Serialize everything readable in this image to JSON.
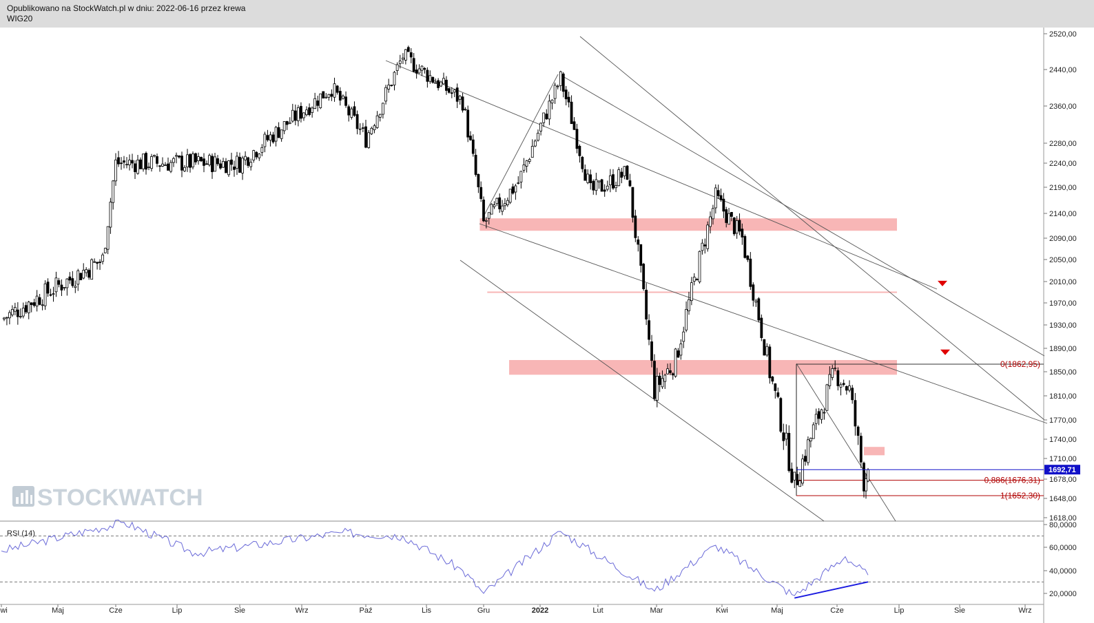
{
  "header": {
    "published": "Opublikowano na StockWatch.pl w dniu: 2022-06-16 przez krewa",
    "symbol": "WIG20"
  },
  "watermark": "STOCKWATCH",
  "colors": {
    "zone": "#f8b6b6",
    "channel": "#555555",
    "price_line": "#1010c8",
    "fib_line": "#b00000",
    "rsi_line": "#6a6ad8",
    "divergence": "#1a1ae0",
    "marker": "#e00000"
  },
  "chart_data": [
    {
      "type": "candlestick",
      "symbol": "WIG20",
      "y_ticks": [
        "2520,00",
        "2440,00",
        "2360,00",
        "2280,00",
        "2240,00",
        "2190,00",
        "2140,00",
        "2090,00",
        "2050,00",
        "2010,00",
        "1970,00",
        "1930,00",
        "1890,00",
        "1850,00",
        "1810,00",
        "1770,00",
        "1740,00",
        "1710,00",
        "1678,00",
        "1648,00",
        "1618,00"
      ],
      "x_ticks": [
        "Kwi",
        "Maj",
        "Cze",
        "Lip",
        "Sie",
        "Wrz",
        "Paź",
        "Lis",
        "Gru",
        "2022",
        "Lut",
        "Mar",
        "Kwi",
        "Maj",
        "Cze",
        "Lip",
        "Sie",
        "Wrz"
      ],
      "last_price": {
        "label": "1692,71",
        "value": 1692.71
      },
      "key_points": [
        {
          "date": "2021-04-01",
          "close": 1940
        },
        {
          "date": "2021-05-25",
          "close": 2050
        },
        {
          "date": "2021-06-01",
          "close": 2240
        },
        {
          "date": "2021-08-01",
          "close": 2240
        },
        {
          "date": "2021-09-15",
          "close": 2400
        },
        {
          "date": "2021-10-01",
          "close": 2290
        },
        {
          "date": "2021-10-20",
          "close": 2470
        },
        {
          "date": "2021-11-20",
          "close": 2370
        },
        {
          "date": "2021-12-01",
          "close": 2120
        },
        {
          "date": "2021-12-20",
          "close": 2200
        },
        {
          "date": "2022-01-12",
          "close": 2420
        },
        {
          "date": "2022-01-28",
          "close": 2180
        },
        {
          "date": "2022-02-15",
          "close": 2220
        },
        {
          "date": "2022-02-28",
          "close": 1820
        },
        {
          "date": "2022-03-10",
          "close": 1870
        },
        {
          "date": "2022-03-29",
          "close": 2170
        },
        {
          "date": "2022-04-12",
          "close": 2090
        },
        {
          "date": "2022-04-27",
          "close": 1850
        },
        {
          "date": "2022-05-10",
          "close": 1670
        },
        {
          "date": "2022-05-31",
          "close": 1850
        },
        {
          "date": "2022-06-07",
          "close": 1820
        },
        {
          "date": "2022-06-14",
          "close": 1676
        },
        {
          "date": "2022-06-16",
          "close": 1692.71
        }
      ],
      "fibonacci": [
        {
          "label": "0(1862,95)",
          "value": 1862.95
        },
        {
          "label": "0,886(1676,31)",
          "value": 1676.31
        },
        {
          "label": "1(1652,30)",
          "value": 1652.3
        }
      ],
      "resistance_zones": [
        {
          "from_date": "2021-11-29",
          "to_date": "2022-06-30",
          "low": 2105,
          "high": 2130
        },
        {
          "from_date": "2021-12-15",
          "to_date": "2022-06-30",
          "low": 1845,
          "high": 1870
        },
        {
          "from_date": "2022-06-14",
          "to_date": "2022-06-24",
          "low": 1715,
          "high": 1728
        }
      ],
      "support_line": {
        "from_date": "2021-12-03",
        "to_date": "2022-06-30",
        "value": 1990
      }
    },
    {
      "type": "line",
      "title": "RSI (14)",
      "y_ticks": [
        "80,0000",
        "60,0000",
        "40,0000",
        "20,0000"
      ],
      "ylim": [
        15,
        85
      ],
      "levels": [
        70,
        30
      ],
      "key_points": [
        {
          "date": "2021-04-01",
          "value": 57
        },
        {
          "date": "2021-06-05",
          "value": 82
        },
        {
          "date": "2021-07-10",
          "value": 55
        },
        {
          "date": "2021-09-20",
          "value": 73
        },
        {
          "date": "2021-10-20",
          "value": 70
        },
        {
          "date": "2021-11-20",
          "value": 40
        },
        {
          "date": "2021-12-01",
          "value": 20
        },
        {
          "date": "2022-01-12",
          "value": 74
        },
        {
          "date": "2022-02-28",
          "value": 22
        },
        {
          "date": "2022-03-29",
          "value": 62
        },
        {
          "date": "2022-05-10",
          "value": 18
        },
        {
          "date": "2022-06-05",
          "value": 52
        },
        {
          "date": "2022-06-16",
          "value": 36
        }
      ]
    }
  ]
}
